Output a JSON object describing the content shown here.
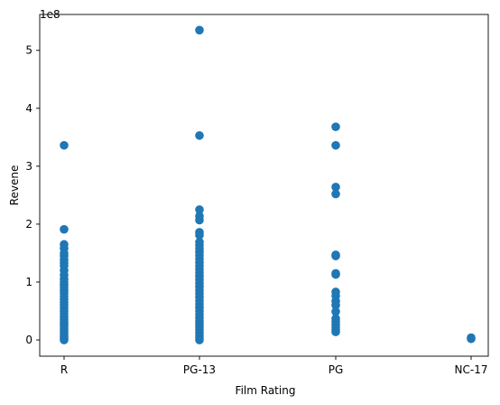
{
  "chart_data": {
    "type": "scatter",
    "title": "",
    "xlabel": "Film Rating",
    "ylabel": "Revene",
    "y_offset_label": "1e8",
    "categories": [
      "R",
      "PG-13",
      "PG",
      "NC-17"
    ],
    "ylim": [
      -0.28,
      5.62
    ],
    "y_ticks": [
      0,
      1,
      2,
      3,
      4,
      5
    ],
    "y_tick_labels": [
      "0",
      "1",
      "2",
      "3",
      "4",
      "5"
    ],
    "grid": false,
    "marker_color": "#1f77b4",
    "series": [
      {
        "values": [
          [
            "R",
            3.36
          ],
          [
            "R",
            1.91
          ],
          [
            "R",
            1.65
          ],
          [
            "R",
            1.58
          ],
          [
            "R",
            1.5
          ],
          [
            "R",
            1.45
          ],
          [
            "R",
            1.38
          ],
          [
            "R",
            1.33
          ],
          [
            "R",
            1.28
          ],
          [
            "R",
            1.2
          ],
          [
            "R",
            1.12
          ],
          [
            "R",
            1.05
          ],
          [
            "R",
            1.0
          ],
          [
            "R",
            0.95
          ],
          [
            "R",
            0.9
          ],
          [
            "R",
            0.85
          ],
          [
            "R",
            0.8
          ],
          [
            "R",
            0.75
          ],
          [
            "R",
            0.7
          ],
          [
            "R",
            0.65
          ],
          [
            "R",
            0.6
          ],
          [
            "R",
            0.55
          ],
          [
            "R",
            0.5
          ],
          [
            "R",
            0.45
          ],
          [
            "R",
            0.4
          ],
          [
            "R",
            0.36
          ],
          [
            "R",
            0.32
          ],
          [
            "R",
            0.28
          ],
          [
            "R",
            0.24
          ],
          [
            "R",
            0.2
          ],
          [
            "R",
            0.16
          ],
          [
            "R",
            0.12
          ],
          [
            "R",
            0.08
          ],
          [
            "R",
            0.05
          ],
          [
            "R",
            0.02
          ],
          [
            "R",
            0.0
          ],
          [
            "PG-13",
            5.35
          ],
          [
            "PG-13",
            3.53
          ],
          [
            "PG-13",
            2.25
          ],
          [
            "PG-13",
            2.14
          ],
          [
            "PG-13",
            2.07
          ],
          [
            "PG-13",
            1.86
          ],
          [
            "PG-13",
            1.81
          ],
          [
            "PG-13",
            1.69
          ],
          [
            "PG-13",
            1.64
          ],
          [
            "PG-13",
            1.58
          ],
          [
            "PG-13",
            1.52
          ],
          [
            "PG-13",
            1.46
          ],
          [
            "PG-13",
            1.4
          ],
          [
            "PG-13",
            1.34
          ],
          [
            "PG-13",
            1.28
          ],
          [
            "PG-13",
            1.22
          ],
          [
            "PG-13",
            1.16
          ],
          [
            "PG-13",
            1.1
          ],
          [
            "PG-13",
            1.04
          ],
          [
            "PG-13",
            0.98
          ],
          [
            "PG-13",
            0.92
          ],
          [
            "PG-13",
            0.86
          ],
          [
            "PG-13",
            0.8
          ],
          [
            "PG-13",
            0.74
          ],
          [
            "PG-13",
            0.68
          ],
          [
            "PG-13",
            0.62
          ],
          [
            "PG-13",
            0.56
          ],
          [
            "PG-13",
            0.5
          ],
          [
            "PG-13",
            0.44
          ],
          [
            "PG-13",
            0.38
          ],
          [
            "PG-13",
            0.33
          ],
          [
            "PG-13",
            0.28
          ],
          [
            "PG-13",
            0.23
          ],
          [
            "PG-13",
            0.18
          ],
          [
            "PG-13",
            0.13
          ],
          [
            "PG-13",
            0.08
          ],
          [
            "PG-13",
            0.04
          ],
          [
            "PG-13",
            0.0
          ],
          [
            "PG",
            3.68
          ],
          [
            "PG",
            3.36
          ],
          [
            "PG",
            2.64
          ],
          [
            "PG",
            2.52
          ],
          [
            "PG",
            1.47
          ],
          [
            "PG",
            1.45
          ],
          [
            "PG",
            1.15
          ],
          [
            "PG",
            1.13
          ],
          [
            "PG",
            0.83
          ],
          [
            "PG",
            0.76
          ],
          [
            "PG",
            0.67
          ],
          [
            "PG",
            0.6
          ],
          [
            "PG",
            0.49
          ],
          [
            "PG",
            0.37
          ],
          [
            "PG",
            0.32
          ],
          [
            "PG",
            0.27
          ],
          [
            "PG",
            0.22
          ],
          [
            "PG",
            0.18
          ],
          [
            "PG",
            0.14
          ],
          [
            "NC-17",
            0.04
          ],
          [
            "NC-17",
            0.02
          ]
        ]
      }
    ]
  }
}
